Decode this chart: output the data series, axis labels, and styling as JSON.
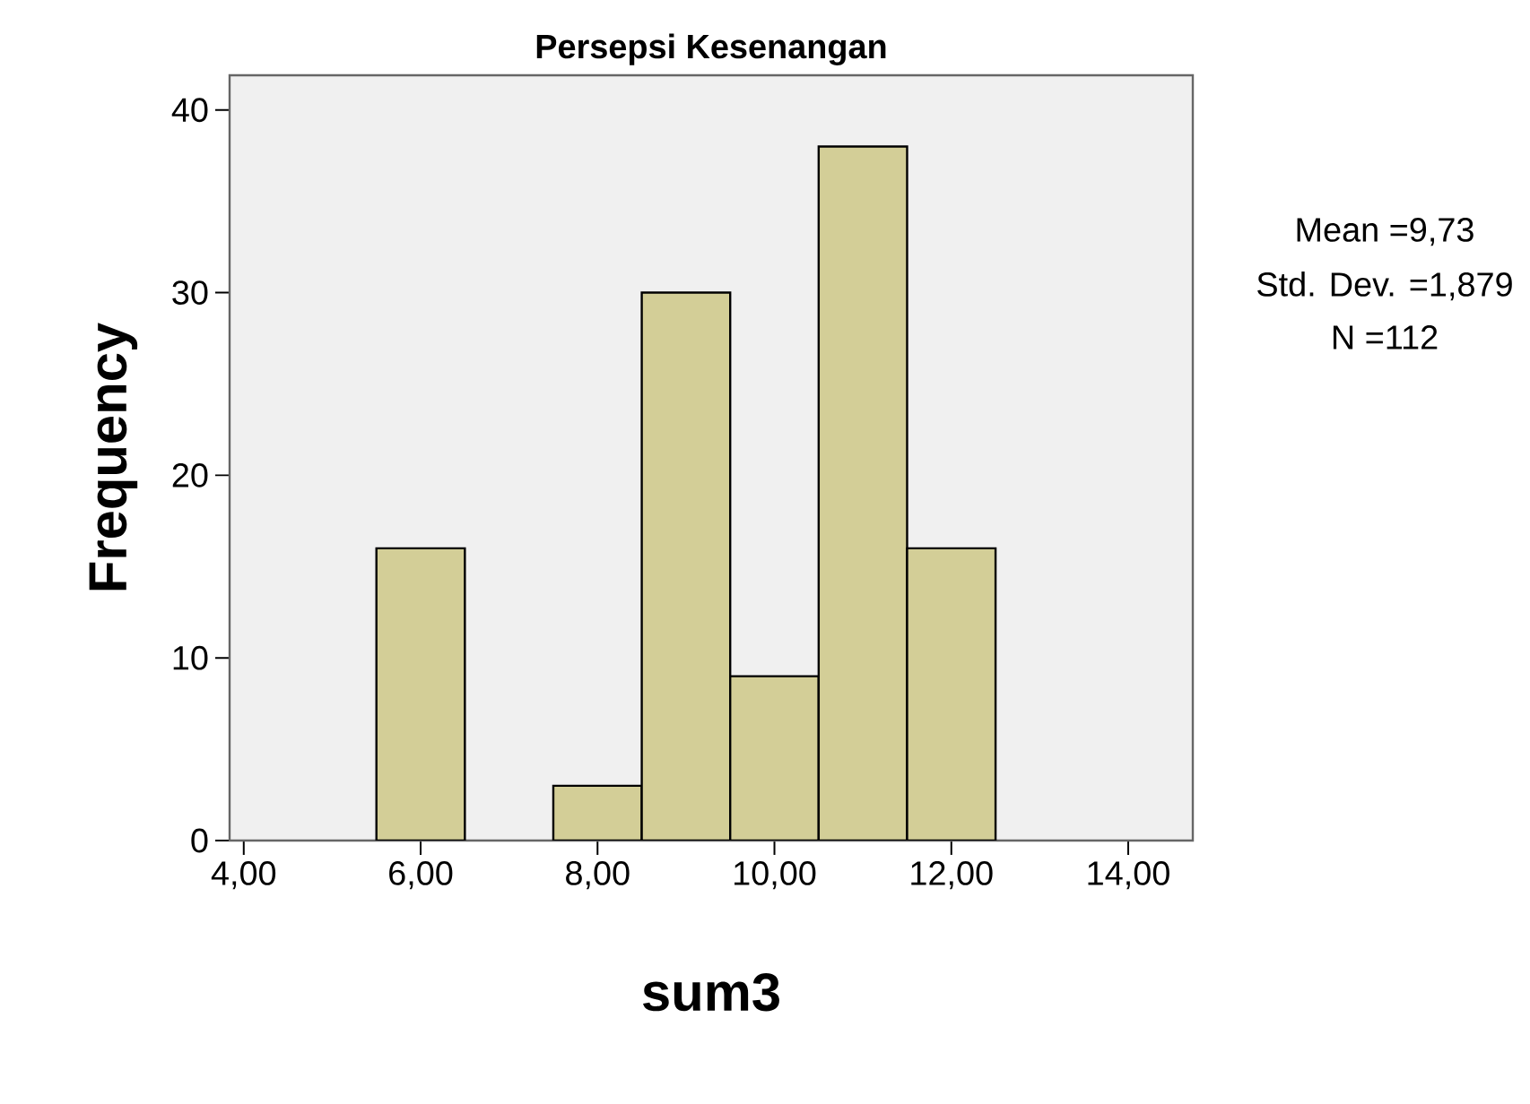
{
  "chart_data": {
    "type": "histogram",
    "title": "Persepsi Kesenangan",
    "xlabel": "sum3",
    "ylabel": "Frequency",
    "bins": [
      5.5,
      6.5,
      7.5,
      8.5,
      9.5,
      10.5,
      11.5,
      12.5
    ],
    "values": [
      16,
      0,
      3,
      30,
      9,
      38,
      16
    ],
    "color": "#d3ce97",
    "xlim": [
      3.84,
      14.73
    ],
    "ylim": [
      0,
      41.9
    ],
    "xticks": [
      {
        "value": 4,
        "label": "4,00"
      },
      {
        "value": 6,
        "label": "6,00"
      },
      {
        "value": 8,
        "label": "8,00"
      },
      {
        "value": 10,
        "label": "10,00"
      },
      {
        "value": 12,
        "label": "12,00"
      },
      {
        "value": 14,
        "label": "14,00"
      }
    ],
    "yticks": [
      0,
      10,
      20,
      30,
      40
    ],
    "annotations": [
      "Mean =9,73",
      "Std. Dev. =1,879",
      "N =112"
    ]
  }
}
